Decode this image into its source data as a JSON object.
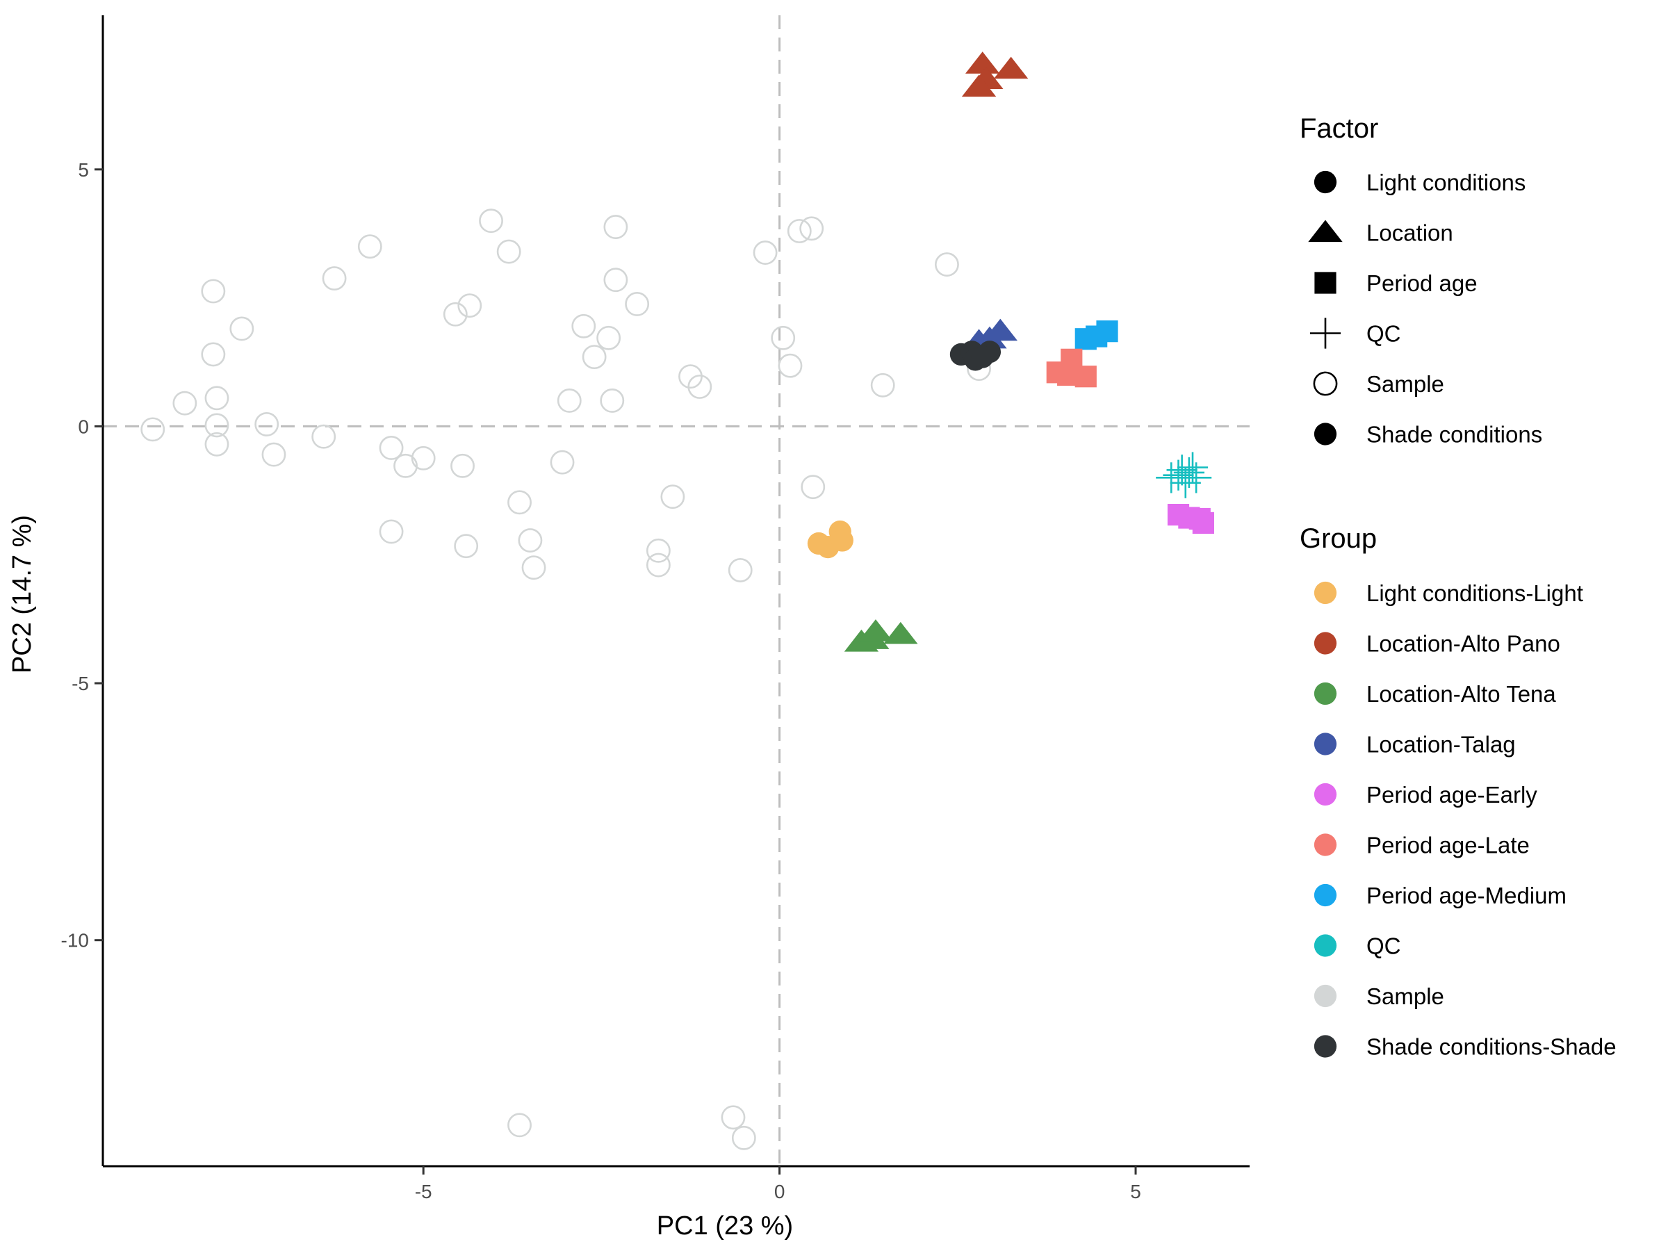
{
  "chart_data": {
    "type": "scatter",
    "xlabel": "PC1 (23 %)",
    "ylabel": "PC2 (14.7 %)",
    "xlim": [
      -9.5,
      6.6
    ],
    "ylim": [
      -14.4,
      8.0
    ],
    "x_ticks": [
      -5,
      0,
      5
    ],
    "x_tick_labels": [
      "-5",
      "0",
      "5"
    ],
    "y_ticks": [
      -10,
      -5,
      0,
      5
    ],
    "y_tick_labels": [
      "-10",
      "-5",
      "0",
      "5"
    ],
    "reference_lines": {
      "x": 0,
      "y": 0,
      "style": "dashed"
    },
    "grid": false,
    "legend_placement": "right",
    "legends": [
      {
        "title": "Factor",
        "entries": [
          {
            "label": "Light conditions",
            "shape": "circle-filled"
          },
          {
            "label": "Location",
            "shape": "triangle"
          },
          {
            "label": "Period age",
            "shape": "square"
          },
          {
            "label": "QC",
            "shape": "cross"
          },
          {
            "label": "Sample",
            "shape": "circle-open"
          },
          {
            "label": "Shade conditions",
            "shape": "circle-filled"
          }
        ]
      },
      {
        "title": "Group",
        "entries": [
          {
            "label": "Light conditions-Light",
            "color": "#F5B95F"
          },
          {
            "label": "Location-Alto Pano",
            "color": "#B5432A"
          },
          {
            "label": "Location-Alto Tena",
            "color": "#4F9A4C"
          },
          {
            "label": "Location-Talag",
            "color": "#3F57A6"
          },
          {
            "label": "Period age-Early",
            "color": "#E26AEE"
          },
          {
            "label": "Period age-Late",
            "color": "#F47A72"
          },
          {
            "label": "Period age-Medium",
            "color": "#18A8EE"
          },
          {
            "label": "QC",
            "color": "#17BEC0"
          },
          {
            "label": "Sample",
            "color": "#D3D6D6"
          },
          {
            "label": "Shade conditions-Shade",
            "color": "#303437"
          }
        ]
      }
    ],
    "series": [
      {
        "group": "Sample",
        "shape": "circle-open",
        "color": "#D3D6D6",
        "points": [
          [
            -8.8,
            -0.06
          ],
          [
            -8.35,
            0.45
          ],
          [
            -7.95,
            2.63
          ],
          [
            -7.95,
            1.4
          ],
          [
            -7.9,
            0.55
          ],
          [
            -7.9,
            0.02
          ],
          [
            -7.9,
            -0.35
          ],
          [
            -7.55,
            1.9
          ],
          [
            -7.2,
            0.04
          ],
          [
            -7.1,
            -0.55
          ],
          [
            -6.4,
            -0.2
          ],
          [
            -6.25,
            2.88
          ],
          [
            -5.75,
            3.5
          ],
          [
            -5.45,
            -0.42
          ],
          [
            -5.45,
            -2.05
          ],
          [
            -5.25,
            -0.77
          ],
          [
            -5.0,
            -0.62
          ],
          [
            -4.55,
            2.18
          ],
          [
            -4.45,
            -0.77
          ],
          [
            -4.4,
            -2.33
          ],
          [
            -4.35,
            2.35
          ],
          [
            -4.05,
            4.0
          ],
          [
            -3.8,
            3.4
          ],
          [
            -3.65,
            -1.48
          ],
          [
            -3.5,
            -2.22
          ],
          [
            -3.45,
            -2.75
          ],
          [
            -3.05,
            -0.7
          ],
          [
            -2.95,
            0.5
          ],
          [
            -2.75,
            1.95
          ],
          [
            -2.6,
            1.35
          ],
          [
            -2.4,
            1.72
          ],
          [
            -2.35,
            0.5
          ],
          [
            -2.3,
            3.88
          ],
          [
            -2.3,
            2.85
          ],
          [
            -2.0,
            2.38
          ],
          [
            -1.7,
            -2.42
          ],
          [
            -1.7,
            -2.7
          ],
          [
            -1.5,
            -1.37
          ],
          [
            -1.25,
            0.97
          ],
          [
            -1.12,
            0.77
          ],
          [
            -0.2,
            3.38
          ],
          [
            0.05,
            1.72
          ],
          [
            0.15,
            1.18
          ],
          [
            0.28,
            3.8
          ],
          [
            0.45,
            3.85
          ],
          [
            0.47,
            -1.18
          ],
          [
            -0.55,
            -2.8
          ],
          [
            1.45,
            0.8
          ],
          [
            2.35,
            3.15
          ],
          [
            2.8,
            1.12
          ],
          [
            -3.65,
            -13.6
          ],
          [
            -0.65,
            -13.45
          ],
          [
            -0.5,
            -13.85
          ]
        ]
      },
      {
        "group": "Location-Alto Pano",
        "shape": "triangle",
        "color": "#B5432A",
        "points": [
          [
            2.85,
            7.05
          ],
          [
            3.25,
            6.95
          ],
          [
            2.9,
            6.75
          ],
          [
            2.8,
            6.6
          ]
        ]
      },
      {
        "group": "Location-Talag",
        "shape": "triangle",
        "color": "#3F57A6",
        "points": [
          [
            2.8,
            1.65
          ],
          [
            3.1,
            1.85
          ],
          [
            2.95,
            1.7
          ]
        ]
      },
      {
        "group": "Shade conditions-Shade",
        "shape": "circle-filled",
        "color": "#303437",
        "points": [
          [
            2.55,
            1.4
          ],
          [
            2.7,
            1.45
          ],
          [
            2.75,
            1.3
          ],
          [
            2.95,
            1.45
          ],
          [
            2.85,
            1.35
          ]
        ]
      },
      {
        "group": "Period age-Medium",
        "shape": "square",
        "color": "#18A8EE",
        "points": [
          [
            4.3,
            1.7
          ],
          [
            4.45,
            1.75
          ],
          [
            4.6,
            1.85
          ]
        ]
      },
      {
        "group": "Period age-Late",
        "shape": "square",
        "color": "#F47A72",
        "points": [
          [
            3.9,
            1.05
          ],
          [
            4.05,
            1.0
          ],
          [
            4.1,
            1.3
          ],
          [
            4.3,
            0.97
          ]
        ]
      },
      {
        "group": "QC",
        "shape": "cross",
        "color": "#17BEC0",
        "points": [
          [
            5.5,
            -1.0
          ],
          [
            5.6,
            -0.95
          ],
          [
            5.65,
            -0.85
          ],
          [
            5.7,
            -1.1
          ],
          [
            5.75,
            -0.9
          ],
          [
            5.8,
            -0.8
          ],
          [
            5.85,
            -1.0
          ]
        ]
      },
      {
        "group": "Period age-Early",
        "shape": "square",
        "color": "#E26AEE",
        "points": [
          [
            5.6,
            -1.72
          ],
          [
            5.75,
            -1.78
          ],
          [
            5.9,
            -1.8
          ],
          [
            5.95,
            -1.88
          ]
        ]
      },
      {
        "group": "Light conditions-Light",
        "shape": "circle-filled",
        "color": "#F5B95F",
        "points": [
          [
            0.55,
            -2.28
          ],
          [
            0.68,
            -2.35
          ],
          [
            0.85,
            -2.05
          ],
          [
            0.88,
            -2.22
          ]
        ]
      },
      {
        "group": "Location-Alto Tena",
        "shape": "triangle",
        "color": "#4F9A4C",
        "points": [
          [
            1.15,
            -4.2
          ],
          [
            1.3,
            -4.15
          ],
          [
            1.35,
            -4.0
          ],
          [
            1.7,
            -4.05
          ]
        ]
      }
    ]
  }
}
